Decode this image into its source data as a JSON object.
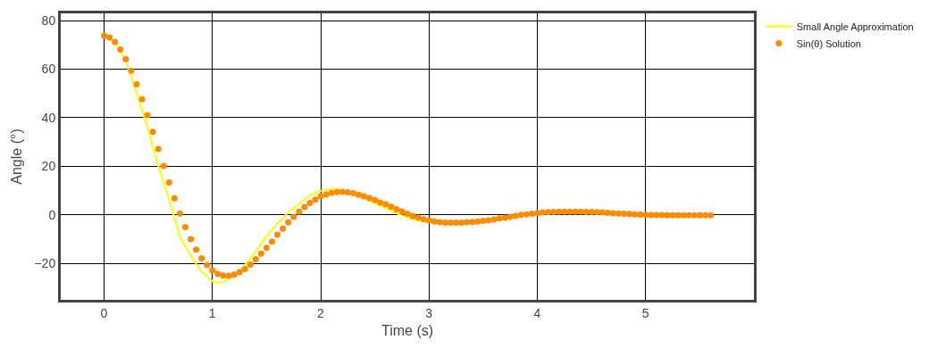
{
  "chart_data": {
    "type": "line",
    "xlabel": "Time (s)",
    "ylabel": "Angle (°)",
    "xlim": [
      -0.4,
      6.0
    ],
    "xticks": [
      0,
      1,
      2,
      3,
      4,
      5
    ],
    "ylim": [
      -35,
      83
    ],
    "yticks": [
      {
        "value": -20,
        "label": "−20"
      },
      0,
      20,
      40,
      60,
      80
    ],
    "grid": true,
    "legend": "top right",
    "series": [
      {
        "name": "Small Angle Approximation",
        "color": "#ffff00",
        "marker": "none",
        "line_style": "solid",
        "x": [
          0,
          0.1,
          0.2,
          0.3,
          0.4,
          0.5,
          0.6,
          0.7,
          0.8,
          0.9,
          1.0,
          1.05,
          1.1,
          1.2,
          1.3,
          1.4,
          1.5,
          1.6,
          1.7,
          1.8,
          1.9,
          2.0,
          2.1,
          2.2,
          2.3,
          2.4,
          2.5,
          2.6,
          2.7,
          2.8,
          2.9,
          3.0,
          3.1
        ],
        "values": [
          73.8,
          70.6,
          63.4,
          50.1,
          36.1,
          20.1,
          6.3,
          -9.2,
          -16.9,
          -23.5,
          -27.3,
          -27.9,
          -27.6,
          -25.2,
          -20.8,
          -15.1,
          -8.6,
          -3.6,
          1.0,
          4.5,
          8.1,
          9.9,
          10.7,
          10.2,
          8.7,
          6.9,
          4.8,
          2.7,
          0.6,
          -1.1,
          -2.3,
          -3.0,
          -3.3
        ]
      },
      {
        "name": "Sin(θ) Solution",
        "type": "scatter",
        "color": "#ff8c00",
        "marker": "circle",
        "x": [
          0,
          0.05,
          0.1,
          0.15,
          0.2,
          0.25,
          0.3,
          0.35,
          0.4,
          0.45,
          0.5,
          0.55,
          0.6,
          0.65,
          0.7,
          0.75,
          0.8,
          0.85,
          0.9,
          0.95,
          1.0,
          1.05,
          1.1,
          1.15,
          1.2,
          1.25,
          1.3,
          1.35,
          1.4,
          1.45,
          1.5,
          1.55,
          1.6,
          1.65,
          1.7,
          1.75,
          1.8,
          1.85,
          1.9,
          1.95,
          2.0,
          2.05,
          2.1,
          2.15,
          2.2,
          2.25,
          2.3,
          2.35,
          2.4,
          2.45,
          2.5,
          2.55,
          2.6,
          2.65,
          2.7,
          2.75,
          2.8,
          2.85,
          2.9,
          2.95,
          3.0,
          3.05,
          3.1,
          3.15,
          3.2,
          3.25,
          3.3,
          3.35,
          3.4,
          3.45,
          3.5,
          3.55,
          3.6,
          3.65,
          3.7,
          3.75,
          3.8,
          3.85,
          3.9,
          3.95,
          4.0,
          4.05,
          4.1,
          4.15,
          4.2,
          4.25,
          4.3,
          4.35,
          4.4,
          4.45,
          4.5,
          4.55,
          4.6,
          4.65,
          4.7,
          4.75,
          4.8,
          4.85,
          4.9,
          4.95,
          5.0,
          5.05,
          5.1,
          5.15,
          5.2,
          5.25,
          5.3,
          5.35,
          5.4,
          5.45,
          5.5,
          5.55,
          5.6
        ],
        "values": [
          73.8,
          73.1,
          71.2,
          68.1,
          64.2,
          59.4,
          53.8,
          47.6,
          41.1,
          34.2,
          27.1,
          20.1,
          13.3,
          6.8,
          0.6,
          -5.0,
          -10.0,
          -14.3,
          -17.9,
          -20.7,
          -22.9,
          -24.3,
          -25.0,
          -25.1,
          -24.6,
          -23.6,
          -22.3,
          -20.5,
          -18.3,
          -16.0,
          -13.6,
          -11.0,
          -8.2,
          -5.7,
          -3.1,
          -0.8,
          1.3,
          3.2,
          4.9,
          6.3,
          7.6,
          8.4,
          9.0,
          9.4,
          9.5,
          9.3,
          8.9,
          8.3,
          7.6,
          6.9,
          6.1,
          5.1,
          4.3,
          3.3,
          2.3,
          1.4,
          0.5,
          -0.5,
          -1.2,
          -1.8,
          -2.3,
          -2.7,
          -3.0,
          -3.2,
          -3.2,
          -3.2,
          -3.2,
          -3.0,
          -2.9,
          -2.7,
          -2.5,
          -2.3,
          -1.9,
          -1.5,
          -1.2,
          -0.8,
          -0.4,
          0.0,
          0.2,
          0.5,
          0.7,
          1.0,
          1.1,
          1.2,
          1.3,
          1.3,
          1.3,
          1.3,
          1.3,
          1.2,
          1.2,
          1.1,
          1.0,
          0.8,
          0.7,
          0.6,
          0.5,
          0.4,
          0.2,
          0.1,
          0.0,
          -0.1,
          -0.1,
          -0.1,
          -0.2,
          -0.2,
          -0.2,
          -0.2,
          -0.2,
          -0.2,
          -0.2,
          -0.2,
          -0.2
        ]
      }
    ]
  }
}
